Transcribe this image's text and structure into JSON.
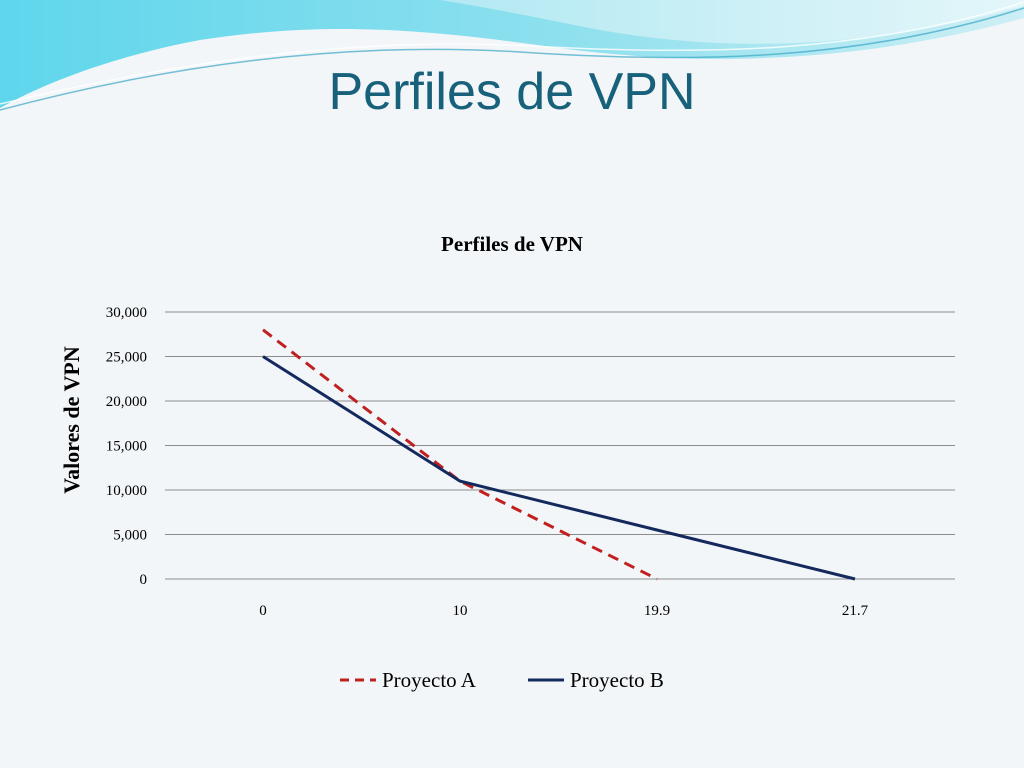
{
  "slide": {
    "title": "Perfiles de VPN"
  },
  "colors": {
    "title": "#17617a",
    "series_a": "#c0201f",
    "series_b": "#14295e",
    "grid": "#8c8c8c"
  },
  "chart_data": {
    "type": "line",
    "title": "Perfiles de VPN",
    "xlabel": "",
    "ylabel": "Valores de VPN",
    "categories": [
      "0",
      "10",
      "19.9",
      "21.7"
    ],
    "ylim": [
      0,
      30000
    ],
    "yticks": [
      "0",
      "5,000",
      "10,000",
      "15,000",
      "20,000",
      "25,000",
      "30,000"
    ],
    "grid": true,
    "legend": "bottom",
    "series": [
      {
        "name": "Proyecto A",
        "style": "dashed",
        "values": [
          28000,
          11000,
          0,
          null
        ]
      },
      {
        "name": "Proyecto B",
        "style": "solid",
        "values": [
          25000,
          11000,
          5500,
          0
        ]
      }
    ]
  }
}
